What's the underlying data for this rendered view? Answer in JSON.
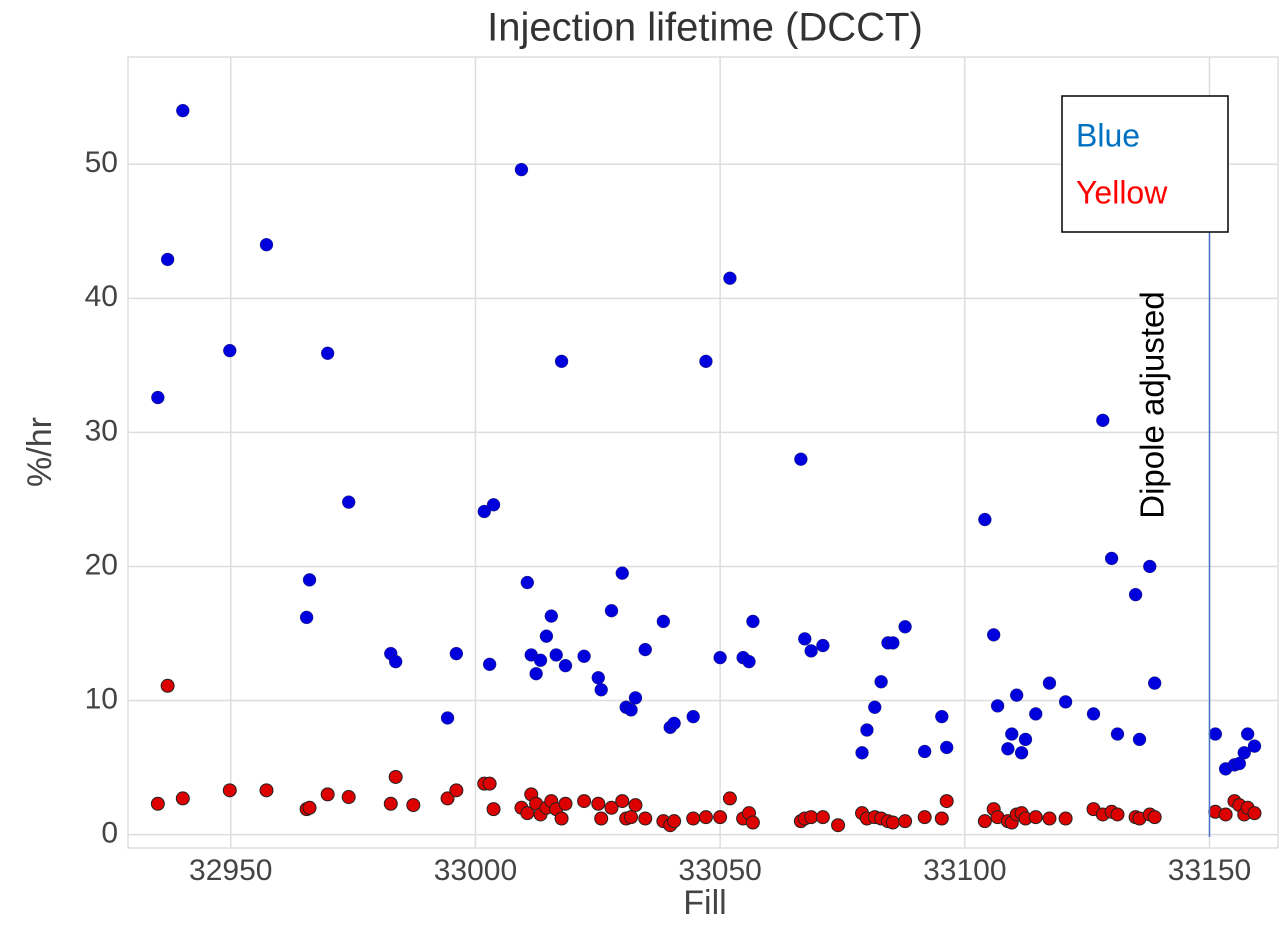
{
  "chart_data": {
    "type": "scatter",
    "title": "Injection lifetime (DCCT)",
    "xlabel": "Fill",
    "ylabel": "%/hr",
    "xlim": [
      32929,
      33164
    ],
    "xticks": [
      32950,
      33000,
      33050,
      33100,
      33150
    ],
    "ylim": [
      -1,
      58
    ],
    "yticks": [
      0,
      10,
      20,
      30,
      40,
      50
    ],
    "grid": true,
    "series": [
      {
        "name": "Blue",
        "color": "#0000dd",
        "label_color": "#0070c0",
        "x": [
          32935.1,
          32937.1,
          32940.2,
          32949.8,
          32957.3,
          32965.5,
          32966.1,
          32969.8,
          32974.1,
          32982.7,
          32983.7,
          32994.3,
          32996.1,
          33001.8,
          33002.9,
          33003.7,
          33009.4,
          33010.6,
          33011.4,
          33012.4,
          33013.3,
          33014.5,
          33015.5,
          33016.5,
          33017.6,
          33018.4,
          33022.2,
          33025.1,
          33025.7,
          33027.8,
          33030.0,
          33030.8,
          33031.8,
          33032.7,
          33034.7,
          33038.4,
          33039.8,
          33040.6,
          33044.5,
          33047.1,
          33050.0,
          33052.0,
          33054.7,
          33055.9,
          33056.7,
          33066.5,
          33067.3,
          33068.6,
          33071.0,
          33079.0,
          33080.0,
          33081.6,
          33082.9,
          33084.3,
          33085.3,
          33087.8,
          33091.8,
          33095.3,
          33096.3,
          33104.1,
          33105.9,
          33106.7,
          33108.8,
          33109.6,
          33110.6,
          33111.6,
          33112.4,
          33114.5,
          33117.3,
          33120.6,
          33126.3,
          33128.2,
          33130.0,
          33131.2,
          33134.9,
          33135.7,
          33137.8,
          33138.8,
          33151.2,
          33153.3,
          33155.1,
          33156.1,
          33157.1,
          33157.8,
          33159.2
        ],
        "values": [
          32.6,
          42.9,
          54.0,
          36.1,
          44.0,
          16.2,
          19.0,
          35.9,
          24.8,
          13.5,
          12.9,
          8.7,
          13.5,
          24.1,
          12.7,
          24.6,
          49.6,
          18.8,
          13.4,
          12.0,
          13.0,
          14.8,
          16.3,
          13.4,
          35.3,
          12.6,
          13.3,
          11.7,
          10.8,
          16.7,
          19.5,
          9.5,
          9.3,
          10.2,
          13.8,
          15.9,
          8.0,
          8.3,
          8.8,
          35.3,
          13.2,
          41.5,
          13.2,
          12.9,
          15.9,
          28.0,
          14.6,
          13.7,
          14.1,
          6.1,
          7.8,
          9.5,
          11.4,
          14.3,
          14.3,
          15.5,
          6.2,
          8.8,
          6.5,
          23.5,
          14.9,
          9.6,
          6.4,
          7.5,
          10.4,
          6.1,
          7.1,
          9.0,
          11.3,
          9.9,
          9.0,
          30.9,
          20.6,
          7.5,
          17.9,
          7.1,
          20.0,
          11.3,
          7.5,
          4.9,
          5.2,
          5.3,
          6.1,
          7.5,
          6.6
        ]
      },
      {
        "name": "Yellow",
        "color": "#dd0000",
        "label_color": "#ff0000",
        "x": [
          32935.1,
          32937.1,
          32940.2,
          32949.8,
          32957.3,
          32965.5,
          32966.1,
          32969.8,
          32974.1,
          32982.7,
          32983.7,
          32987.3,
          32994.3,
          32996.1,
          33001.8,
          33002.9,
          33003.7,
          33009.4,
          33010.6,
          33011.4,
          33012.4,
          33013.3,
          33014.5,
          33015.5,
          33016.5,
          33017.6,
          33018.4,
          33022.2,
          33025.1,
          33025.7,
          33027.8,
          33030.0,
          33030.8,
          33031.8,
          33032.7,
          33034.7,
          33038.4,
          33039.8,
          33040.6,
          33044.5,
          33047.1,
          33050.0,
          33052.0,
          33054.7,
          33055.9,
          33056.7,
          33066.5,
          33067.3,
          33068.6,
          33071.0,
          33074.1,
          33079.0,
          33080.0,
          33081.6,
          33082.9,
          33084.3,
          33085.3,
          33087.8,
          33091.8,
          33095.3,
          33096.3,
          33104.1,
          33105.9,
          33106.7,
          33108.8,
          33109.6,
          33110.6,
          33111.6,
          33112.4,
          33114.5,
          33117.3,
          33120.6,
          33126.3,
          33128.2,
          33130.0,
          33131.2,
          33134.9,
          33135.7,
          33137.8,
          33138.8,
          33151.2,
          33153.3,
          33155.1,
          33156.1,
          33157.1,
          33157.8,
          33159.2
        ],
        "values": [
          2.3,
          11.1,
          2.7,
          3.3,
          3.3,
          1.9,
          2.0,
          3.0,
          2.8,
          2.3,
          4.3,
          2.2,
          2.7,
          3.3,
          3.8,
          3.8,
          1.9,
          2.0,
          1.6,
          3.0,
          2.3,
          1.5,
          2.0,
          2.5,
          1.9,
          1.2,
          2.3,
          2.5,
          2.3,
          1.2,
          2.0,
          2.5,
          1.2,
          1.3,
          2.2,
          1.2,
          1.0,
          0.7,
          1.0,
          1.2,
          1.3,
          1.3,
          2.7,
          1.2,
          1.6,
          0.9,
          1.0,
          1.2,
          1.3,
          1.3,
          0.7,
          1.6,
          1.2,
          1.3,
          1.2,
          1.0,
          0.9,
          1.0,
          1.3,
          1.2,
          2.5,
          1.0,
          1.9,
          1.3,
          1.0,
          0.9,
          1.5,
          1.6,
          1.2,
          1.3,
          1.2,
          1.2,
          1.9,
          1.5,
          1.7,
          1.5,
          1.3,
          1.2,
          1.5,
          1.3,
          1.7,
          1.5,
          2.5,
          2.2,
          1.5,
          2.0,
          1.6
        ]
      }
    ],
    "annotation": {
      "text": "Dipole adjusted",
      "x": 33150,
      "color": "#4472c4"
    }
  }
}
